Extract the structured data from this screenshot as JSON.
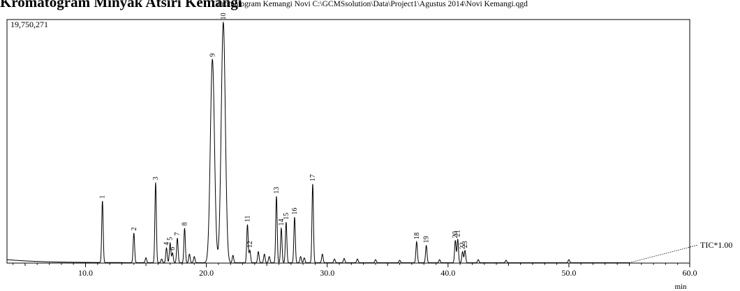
{
  "page": {
    "heading_cut": "Kromatogram Minyak Atsiri Kemangi"
  },
  "chart_data": {
    "type": "line",
    "title": "Chromatogram Kemangi Novi C:\\GCMSsolution\\Data\\Project1\\Agustus 2014\\Novi Kemangi.qgd",
    "ymax_label": "19,750,271",
    "xlabel": "min",
    "xlim": [
      3.5,
      60.0
    ],
    "ylim": [
      0,
      19750271
    ],
    "x_ticks": [
      10.0,
      20.0,
      30.0,
      40.0,
      50.0,
      60.0
    ],
    "x_tick_labels": [
      "10.0",
      "20.0",
      "30.0",
      "40.0",
      "50.0",
      "60.0"
    ],
    "series_label": "TIC*1.00",
    "baseline": 250000,
    "peaks": [
      {
        "label": "1",
        "rt": 11.4,
        "height": 5000000
      },
      {
        "label": "2",
        "rt": 14.0,
        "height": 2400000
      },
      {
        "label": "3",
        "rt": 15.8,
        "height": 6500000
      },
      {
        "label": "4",
        "rt": 16.7,
        "height": 1200000
      },
      {
        "label": "5",
        "rt": 17.0,
        "height": 1600000
      },
      {
        "label": "6",
        "rt": 17.2,
        "height": 800000
      },
      {
        "label": "7",
        "rt": 17.6,
        "height": 2000000
      },
      {
        "label": "8",
        "rt": 18.2,
        "height": 2800000
      },
      {
        "label": "9",
        "rt": 20.5,
        "height": 16500000
      },
      {
        "label": "10",
        "rt": 21.4,
        "height": 19500000
      },
      {
        "label": "11",
        "rt": 23.4,
        "height": 3100000
      },
      {
        "label": "12",
        "rt": 23.6,
        "height": 1000000
      },
      {
        "label": "13",
        "rt": 25.8,
        "height": 5400000
      },
      {
        "label": "14",
        "rt": 26.2,
        "height": 2800000
      },
      {
        "label": "15",
        "rt": 26.6,
        "height": 3300000
      },
      {
        "label": "16",
        "rt": 27.3,
        "height": 3700000
      },
      {
        "label": "17",
        "rt": 28.8,
        "height": 6400000
      },
      {
        "label": "18",
        "rt": 37.4,
        "height": 1700000
      },
      {
        "label": "19",
        "rt": 38.2,
        "height": 1400000
      },
      {
        "label": "20",
        "rt": 40.6,
        "height": 1800000
      },
      {
        "label": "21",
        "rt": 40.8,
        "height": 1900000
      },
      {
        "label": "22",
        "rt": 41.2,
        "height": 900000
      },
      {
        "label": "23",
        "rt": 41.4,
        "height": 1000000
      }
    ],
    "minor_peaks": [
      [
        15.0,
        400000
      ],
      [
        16.3,
        300000
      ],
      [
        18.6,
        700000
      ],
      [
        19.0,
        500000
      ],
      [
        22.2,
        600000
      ],
      [
        24.3,
        900000
      ],
      [
        24.8,
        700000
      ],
      [
        25.2,
        500000
      ],
      [
        27.8,
        500000
      ],
      [
        28.1,
        400000
      ],
      [
        29.6,
        700000
      ],
      [
        30.6,
        300000
      ],
      [
        31.4,
        350000
      ],
      [
        32.5,
        300000
      ],
      [
        34.0,
        250000
      ],
      [
        36.0,
        200000
      ],
      [
        39.3,
        250000
      ],
      [
        42.5,
        250000
      ],
      [
        44.8,
        200000
      ],
      [
        50.0,
        250000
      ]
    ]
  }
}
